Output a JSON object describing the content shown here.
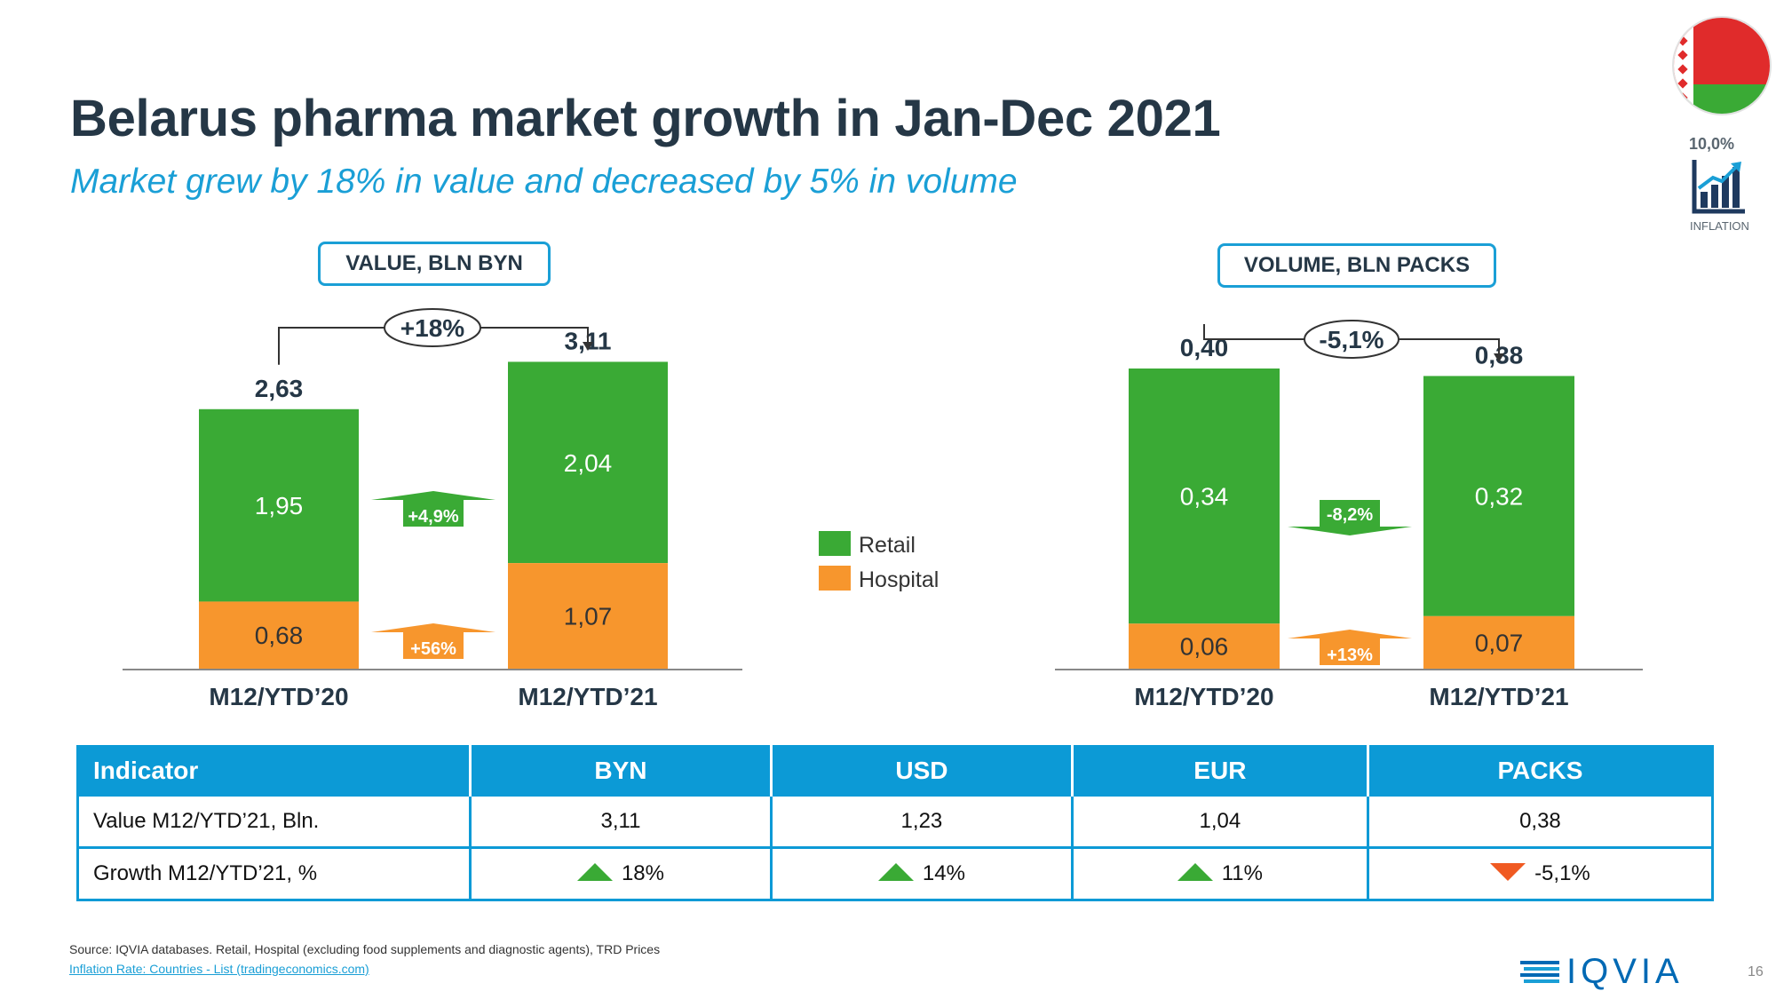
{
  "header": {
    "title": "Belarus pharma market growth in Jan-Dec 2021",
    "subtitle": "Market grew by 18% in value and decreased by 5% in volume"
  },
  "inflation": {
    "value": "10,0%",
    "label": "INFLATION"
  },
  "colors": {
    "retail": "#3aaa35",
    "hospital": "#f7962d",
    "accent": "#1a9fd6",
    "negative": "#f05a22"
  },
  "legend": {
    "retail": "Retail",
    "hospital": "Hospital"
  },
  "chart_data": [
    {
      "type": "bar",
      "stacked": true,
      "title": "VALUE, BLN BYN",
      "categories": [
        "M12/YTD’20",
        "M12/YTD’21"
      ],
      "series": [
        {
          "name": "Retail",
          "values": [
            1.95,
            2.04
          ],
          "labels": [
            "1,95",
            "2,04"
          ]
        },
        {
          "name": "Hospital",
          "values": [
            0.68,
            1.07
          ],
          "labels": [
            "0,68",
            "1,07"
          ]
        }
      ],
      "totals": [
        2.63,
        3.11
      ],
      "total_labels": [
        "2,63",
        "3,11"
      ],
      "total_growth": "+18%",
      "segment_growth": {
        "Retail": "+4,9%",
        "Hospital": "+56%"
      },
      "ylim": [
        0,
        3.6
      ]
    },
    {
      "type": "bar",
      "stacked": true,
      "title": "VOLUME, BLN PACKS",
      "categories": [
        "M12/YTD’20",
        "M12/YTD’21"
      ],
      "series": [
        {
          "name": "Retail",
          "values": [
            0.34,
            0.32
          ],
          "labels": [
            "0,34",
            "0,32"
          ]
        },
        {
          "name": "Hospital",
          "values": [
            0.06,
            0.07
          ],
          "labels": [
            "0,06",
            "0,07"
          ]
        }
      ],
      "totals": [
        0.4,
        0.38
      ],
      "total_labels": [
        "0,40",
        "0,38"
      ],
      "total_growth": "-5,1%",
      "segment_growth": {
        "Retail": "-8,2%",
        "Hospital": "+13%"
      },
      "ylim": [
        0,
        0.426
      ]
    }
  ],
  "table": {
    "headers": [
      "Indicator",
      "BYN",
      "USD",
      "EUR",
      "PACKS"
    ],
    "rows": [
      {
        "label": "Value  M12/YTD’21, Bln.",
        "cells": [
          {
            "text": "3,11"
          },
          {
            "text": "1,23"
          },
          {
            "text": "1,04"
          },
          {
            "text": "0,38"
          }
        ]
      },
      {
        "label": "Growth  M12/YTD’21, %",
        "cells": [
          {
            "text": "18%",
            "trend": "up"
          },
          {
            "text": "14%",
            "trend": "up"
          },
          {
            "text": "11%",
            "trend": "up"
          },
          {
            "text": "-5,1%",
            "trend": "down"
          }
        ]
      }
    ]
  },
  "footer": {
    "source": "Source: IQVIA databases. Retail, Hospital (excluding food supplements and diagnostic agents), TRD Prices",
    "inflation_link": "Inflation Rate: Countries - List (tradingeconomics.com)",
    "logo_text": "IQVIA",
    "page_number": "16"
  }
}
